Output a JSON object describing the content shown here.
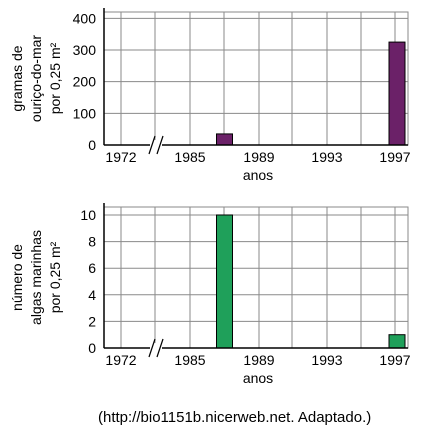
{
  "chart_data": [
    {
      "type": "bar",
      "xlabel": "anos",
      "ylabel": [
        "gramas de",
        "ouriço-do-mar",
        "por 0,25 m²"
      ],
      "x_ticks": [
        "1972",
        "1985",
        "1989",
        "1993",
        "1997"
      ],
      "y_ticks": [
        "0",
        "100",
        "200",
        "300",
        "400"
      ],
      "ylim": [
        0,
        400
      ],
      "grid": true,
      "axis_break": "between 1972 and 1985",
      "bar_color": "#6b2168",
      "series": [
        {
          "values": [
            {
              "x": 1987,
              "y": 35
            },
            {
              "x": 1997,
              "y": 325
            }
          ]
        }
      ]
    },
    {
      "type": "bar",
      "xlabel": "anos",
      "ylabel": [
        "número de",
        "algas marinhas",
        "por 0,25 m²"
      ],
      "x_ticks": [
        "1972",
        "1985",
        "1989",
        "1993",
        "1997"
      ],
      "y_ticks": [
        "0",
        "2",
        "4",
        "6",
        "8",
        "10"
      ],
      "ylim": [
        0,
        10.6
      ],
      "grid": true,
      "axis_break": "between 1972 and 1985",
      "bar_color": "#1fa05a",
      "series": [
        {
          "values": [
            {
              "x": 1987,
              "y": 10
            },
            {
              "x": 1997,
              "y": 1
            }
          ]
        }
      ]
    }
  ],
  "source": "(http://bio1151b.nicerweb.net. Adaptado.)"
}
